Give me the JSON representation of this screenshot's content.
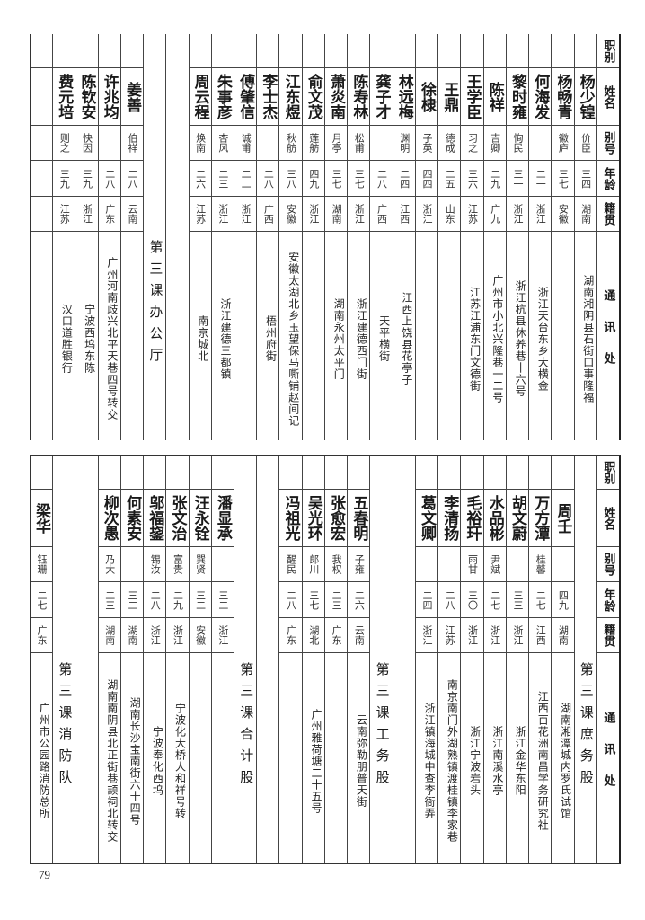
{
  "header": {
    "labels": [
      "职别",
      "姓名",
      "别号",
      "年龄",
      "籍贯",
      "通讯处"
    ]
  },
  "top": {
    "columns": [
      {
        "type": "person",
        "name": "杨少锽",
        "alias": "价臣",
        "age": "三四",
        "native": "湖南",
        "address": "湖南湘阴县石街口事隆福"
      },
      {
        "type": "person",
        "name": "杨畅青",
        "alias": "徽庐",
        "age": "三七",
        "native": "安徽",
        "address": ""
      },
      {
        "type": "person",
        "name": "何海发",
        "alias": "",
        "age": "二一",
        "native": "浙江",
        "address": "浙江天台东乡大横金"
      },
      {
        "type": "person",
        "name": "黎时雍",
        "alias": "恂民",
        "age": "三一",
        "native": "浙江",
        "address": "浙江杭县休养巷十六号"
      },
      {
        "type": "person",
        "name": "陈祥",
        "alias": "吉卿",
        "age": "二九",
        "native": "广九",
        "address": "广州市小北兴隆巷一二号"
      },
      {
        "type": "person",
        "name": "王学臣",
        "alias": "习之",
        "age": "三六",
        "native": "江苏",
        "address": "江苏江浦东门文德街"
      },
      {
        "type": "person",
        "name": "王鼎",
        "alias": "德成",
        "age": "二五",
        "native": "山东",
        "address": ""
      },
      {
        "type": "person",
        "name": "徐棣",
        "alias": "子英",
        "age": "四四",
        "native": "浙江",
        "address": ""
      },
      {
        "type": "person",
        "name": "林远梅",
        "alias": "渊明",
        "age": "二四",
        "native": "江西",
        "address": "江西上饶县花亭子"
      },
      {
        "type": "person",
        "name": "龚子才",
        "alias": "",
        "age": "二八",
        "native": "广西",
        "address": "天平横街"
      },
      {
        "type": "person",
        "name": "陈寿林",
        "alias": "松甫",
        "age": "三七",
        "native": "浙江",
        "address": "浙江建德西门街"
      },
      {
        "type": "person",
        "name": "萧炎南",
        "alias": "月亭",
        "age": "三七",
        "native": "湖南",
        "address": "湖南永州太平门"
      },
      {
        "type": "person",
        "name": "俞文茂",
        "alias": "莲舫",
        "age": "四九",
        "native": "浙江",
        "address": ""
      },
      {
        "type": "person",
        "name": "江东煜",
        "alias": "秋舫",
        "age": "三八",
        "native": "安徽",
        "address": "安徽太湖北乡玉望保马嘶铺赵间记"
      },
      {
        "type": "person",
        "name": "李士杰",
        "alias": "",
        "age": "二八",
        "native": "广西",
        "address": "梧州府街"
      },
      {
        "type": "person",
        "name": "傅肇信",
        "alias": "诚甫",
        "age": "二二",
        "native": "浙江",
        "address": ""
      },
      {
        "type": "person",
        "name": "朱事彦",
        "alias": "杏风",
        "age": "二三",
        "native": "浙江",
        "address": "浙江建德三都镇"
      },
      {
        "type": "person",
        "name": "周云程",
        "alias": "焕南",
        "age": "二六",
        "native": "江苏",
        "address": "南京城北"
      },
      {
        "type": "blank"
      },
      {
        "type": "title",
        "text": "第三课办公厅"
      },
      {
        "type": "person",
        "name": "姜善",
        "alias": "伯祥",
        "age": "二八",
        "native": "云南",
        "address": ""
      },
      {
        "type": "person",
        "name": "许兆均",
        "alias": "",
        "age": "二八",
        "native": "广东",
        "address": "广州河南歧兴北平天巷四号转交"
      },
      {
        "type": "person",
        "name": "陈钦安",
        "alias": "快因",
        "age": "三九",
        "native": "浙江",
        "address": "宁波西坞东陈"
      },
      {
        "type": "person",
        "name": "费元培",
        "alias": "则之",
        "age": "三九",
        "native": "江苏",
        "address": "汉口道胜银行"
      },
      {
        "type": "person",
        "name": "",
        "alias": "",
        "age": "",
        "native": "",
        "address": ""
      }
    ]
  },
  "bottom": {
    "columns": [
      {
        "type": "title",
        "text": "第三课庶务股"
      },
      {
        "type": "person",
        "name": "周壬",
        "alias": "",
        "age": "四九",
        "native": "湖南",
        "address": "湖南湘潭城内罗氏试馆"
      },
      {
        "type": "person",
        "name": "万方潭",
        "alias": "桂馨",
        "age": "二七",
        "native": "江西",
        "address": "江西百花洲南昌学务研究社"
      },
      {
        "type": "person",
        "name": "胡文蔚",
        "alias": "",
        "age": "三三",
        "native": "浙江",
        "address": "浙江金华东阳"
      },
      {
        "type": "person",
        "name": "水品彬",
        "alias": "尹斌",
        "age": "二七",
        "native": "浙江",
        "address": "浙江南溪水亭"
      },
      {
        "type": "person",
        "name": "毛裕玕",
        "alias": "雨甘",
        "age": "三〇",
        "native": "浙江",
        "address": "浙江宁波岩头"
      },
      {
        "type": "person",
        "name": "李清扬",
        "alias": "",
        "age": "二八",
        "native": "江苏",
        "address": "南京南门外湖熟镇渡桂镇李家巷"
      },
      {
        "type": "person",
        "name": "葛文卿",
        "alias": "",
        "age": "二四",
        "native": "浙江",
        "address": "浙江镇海城中查李衙弄"
      },
      {
        "type": "blank"
      },
      {
        "type": "title",
        "text": "第三课工务股"
      },
      {
        "type": "person",
        "name": "五春明",
        "alias": "子雍",
        "age": "二六",
        "native": "云南",
        "address": "云南弥勒朋普天街"
      },
      {
        "type": "person",
        "name": "张愈宏",
        "alias": "我权",
        "age": "二三",
        "native": "广东",
        "address": ""
      },
      {
        "type": "person",
        "name": "吴光环",
        "alias": "郎川",
        "age": "三七",
        "native": "湖北",
        "address": "广州雅荷塘二十五号"
      },
      {
        "type": "person",
        "name": "冯祖光",
        "alias": "醒民",
        "age": "二八",
        "native": "广东",
        "address": ""
      },
      {
        "type": "blank"
      },
      {
        "type": "title",
        "text": "第三课合计股"
      },
      {
        "type": "person",
        "name": "潘显承",
        "alias": "",
        "age": "三二",
        "native": "浙江",
        "address": ""
      },
      {
        "type": "person",
        "name": "汪永铨",
        "alias": "巽贤",
        "age": "三二",
        "native": "安徽",
        "address": ""
      },
      {
        "type": "person",
        "name": "张文治",
        "alias": "富贵",
        "age": "二九",
        "native": "浙江",
        "address": "宁波化大桥人和祥号转"
      },
      {
        "type": "person",
        "name": "邬福鋆",
        "alias": "锡汝",
        "age": "二八",
        "native": "浙江",
        "address": "宁波奉化西坞"
      },
      {
        "type": "person",
        "name": "何素安",
        "alias": "",
        "age": "三二",
        "native": "湖南",
        "address": "湖南长沙宝南街六十四号"
      },
      {
        "type": "person",
        "name": "柳次愚",
        "alias": "乃大",
        "age": "二三",
        "native": "湖南",
        "address": "湖南南阴县北正街巷颉祠北转交"
      },
      {
        "type": "blank"
      },
      {
        "type": "title",
        "text": "第三课消防队"
      },
      {
        "type": "person",
        "name": "梁华",
        "alias": "钰珊",
        "age": "二七",
        "native": "广东",
        "address": "广州市公园路消防总所"
      }
    ]
  },
  "page_number": "79"
}
